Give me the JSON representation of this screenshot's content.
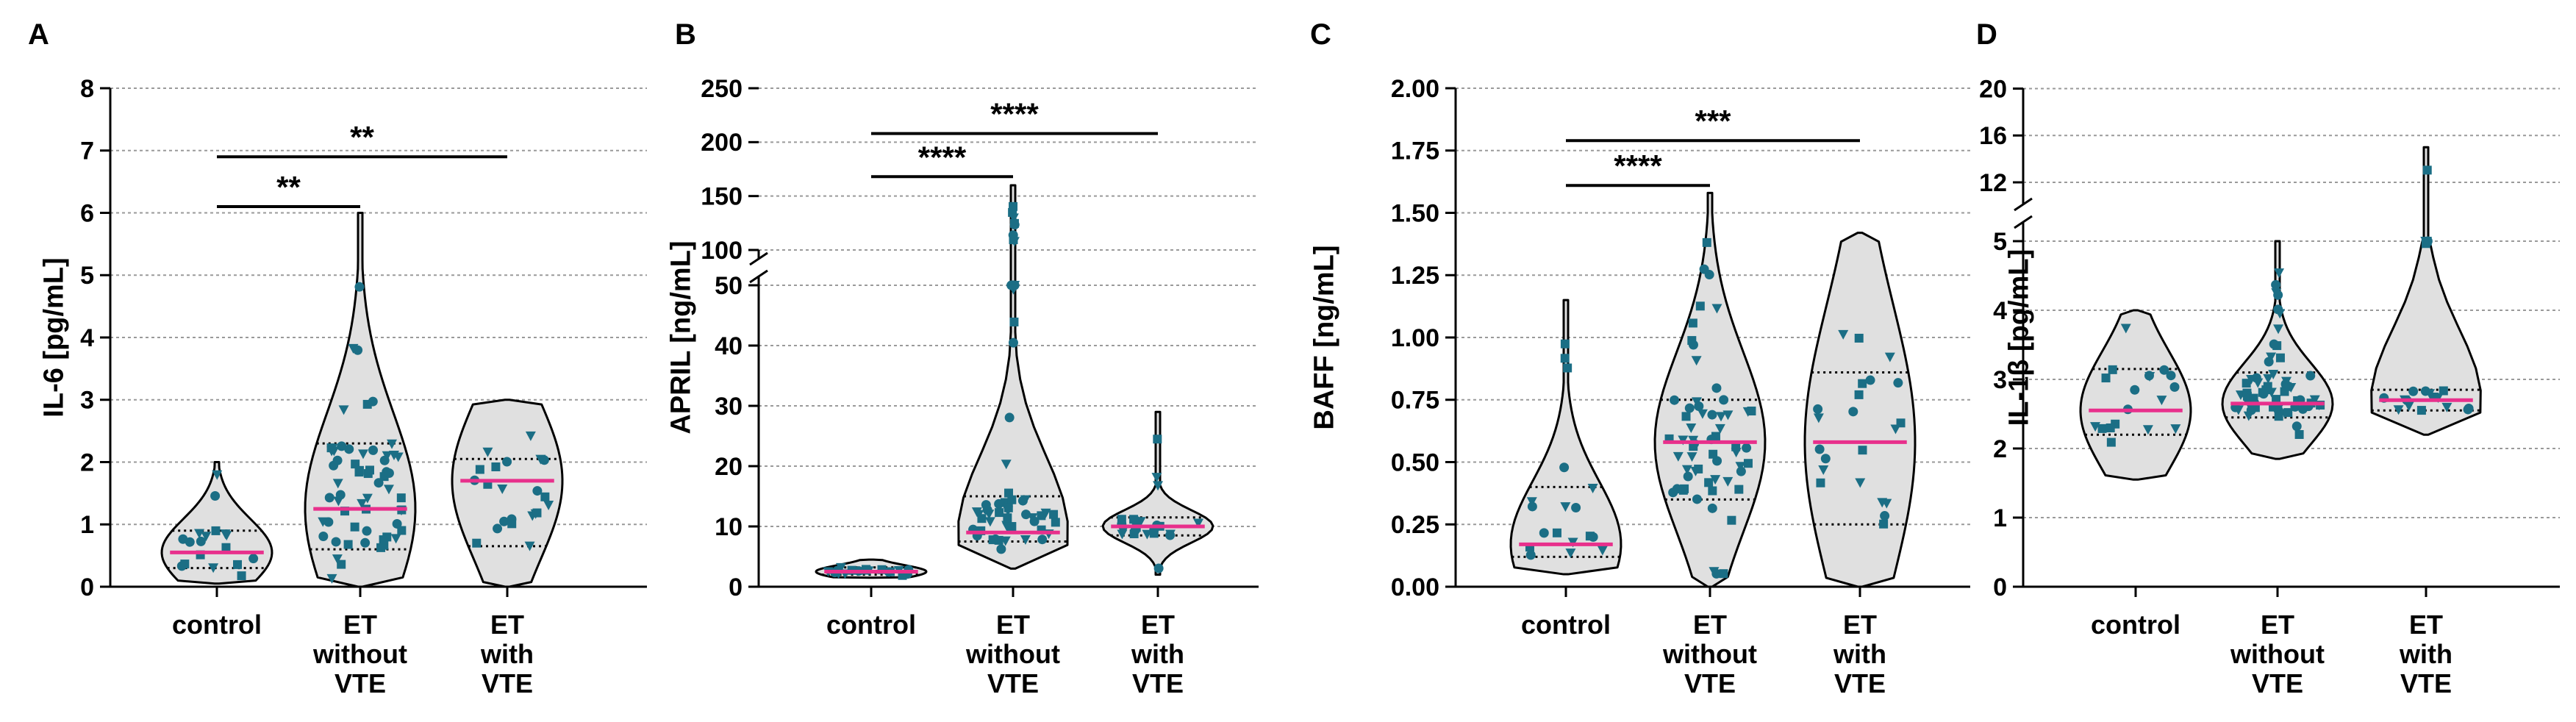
{
  "colors": {
    "violin_fill": "#e0e0e0",
    "violin_stroke": "#000000",
    "point": "#1b6e85",
    "median": "#e8308c",
    "grid": "#9a9a9a"
  },
  "chart_data": [
    {
      "panel": "A",
      "type": "violin",
      "ylabel": "IL-6 [pg/mL]",
      "yticks": [
        "0",
        "1",
        "2",
        "3",
        "4",
        "5",
        "6",
        "7",
        "8"
      ],
      "ylim": [
        0,
        8
      ],
      "categories": [
        "control",
        "ET without VTE",
        "ET with VTE"
      ],
      "category_labels": [
        [
          "control"
        ],
        [
          "ET",
          "without",
          "VTE"
        ],
        [
          "ET",
          "with",
          "VTE"
        ]
      ],
      "medians": [
        0.55,
        1.25,
        1.7
      ],
      "quartiles": [
        [
          0.3,
          0.9
        ],
        [
          0.6,
          2.3
        ],
        [
          0.65,
          2.05
        ]
      ],
      "ranges": [
        [
          0.05,
          2.0
        ],
        [
          0.0,
          6.0
        ],
        [
          0.0,
          3.0
        ]
      ],
      "significance": [
        {
          "from": 0,
          "to": 1,
          "label": "**",
          "y": 6.1
        },
        {
          "from": 0,
          "to": 2,
          "label": "**",
          "y": 6.9
        }
      ]
    },
    {
      "panel": "B",
      "type": "violin",
      "ylabel": "APRIL [ng/mL]",
      "yticks": [
        "0",
        "10",
        "20",
        "30",
        "40",
        "50",
        "100",
        "150",
        "200",
        "250"
      ],
      "ylim": [
        0,
        250
      ],
      "axis_break": {
        "lower": [
          0,
          50
        ],
        "upper": [
          100,
          250
        ]
      },
      "categories": [
        "control",
        "ET without VTE",
        "ET with VTE"
      ],
      "category_labels": [
        [
          "control"
        ],
        [
          "ET",
          "without",
          "VTE"
        ],
        [
          "ET",
          "with",
          "VTE"
        ]
      ],
      "medians": [
        2.5,
        9.0,
        10.0
      ],
      "quartiles": [
        [
          2.0,
          3.2
        ],
        [
          7.5,
          15.0
        ],
        [
          8.5,
          11.5
        ]
      ],
      "ranges": [
        [
          1.5,
          4.5
        ],
        [
          3.0,
          160.0
        ],
        [
          2.0,
          29.0
        ]
      ],
      "significance": [
        {
          "from": 0,
          "to": 1,
          "label": "****",
          "y": 168
        },
        {
          "from": 0,
          "to": 2,
          "label": "****",
          "y": 208
        }
      ]
    },
    {
      "panel": "C",
      "type": "violin",
      "ylabel": "BAFF [ng/mL]",
      "yticks": [
        "0.00",
        "0.25",
        "0.50",
        "0.75",
        "1.00",
        "1.25",
        "1.50",
        "1.75",
        "2.00"
      ],
      "ylim": [
        0,
        2.0
      ],
      "categories": [
        "control",
        "ET without VTE",
        "ET with VTE"
      ],
      "category_labels": [
        [
          "control"
        ],
        [
          "ET",
          "without",
          "VTE"
        ],
        [
          "ET",
          "with",
          "VTE"
        ]
      ],
      "medians": [
        0.17,
        0.58,
        0.58
      ],
      "quartiles": [
        [
          0.12,
          0.4
        ],
        [
          0.35,
          0.75
        ],
        [
          0.25,
          0.86
        ]
      ],
      "ranges": [
        [
          0.05,
          1.15
        ],
        [
          0.0,
          1.58
        ],
        [
          0.0,
          1.42
        ]
      ],
      "significance": [
        {
          "from": 0,
          "to": 1,
          "label": "****",
          "y": 1.61
        },
        {
          "from": 0,
          "to": 2,
          "label": "***",
          "y": 1.79
        }
      ]
    },
    {
      "panel": "D",
      "type": "violin",
      "ylabel": "IL-1β [pg/mL]",
      "yticks": [
        "0",
        "1",
        "2",
        "3",
        "4",
        "5",
        "12",
        "16",
        "20"
      ],
      "ylim": [
        0,
        20
      ],
      "axis_break": {
        "lower": [
          0,
          5
        ],
        "upper": [
          10,
          20
        ]
      },
      "categories": [
        "control",
        "ET without VTE",
        "ET with VTE"
      ],
      "category_labels": [
        [
          "control"
        ],
        [
          "ET",
          "without",
          "VTE"
        ],
        [
          "ET",
          "with",
          "VTE"
        ]
      ],
      "medians": [
        2.55,
        2.65,
        2.7
      ],
      "quartiles": [
        [
          2.2,
          3.15
        ],
        [
          2.45,
          3.1
        ],
        [
          2.55,
          2.85
        ]
      ],
      "ranges": [
        [
          1.55,
          4.0
        ],
        [
          1.85,
          5.0
        ],
        [
          2.2,
          15.0
        ]
      ],
      "significance": []
    }
  ]
}
